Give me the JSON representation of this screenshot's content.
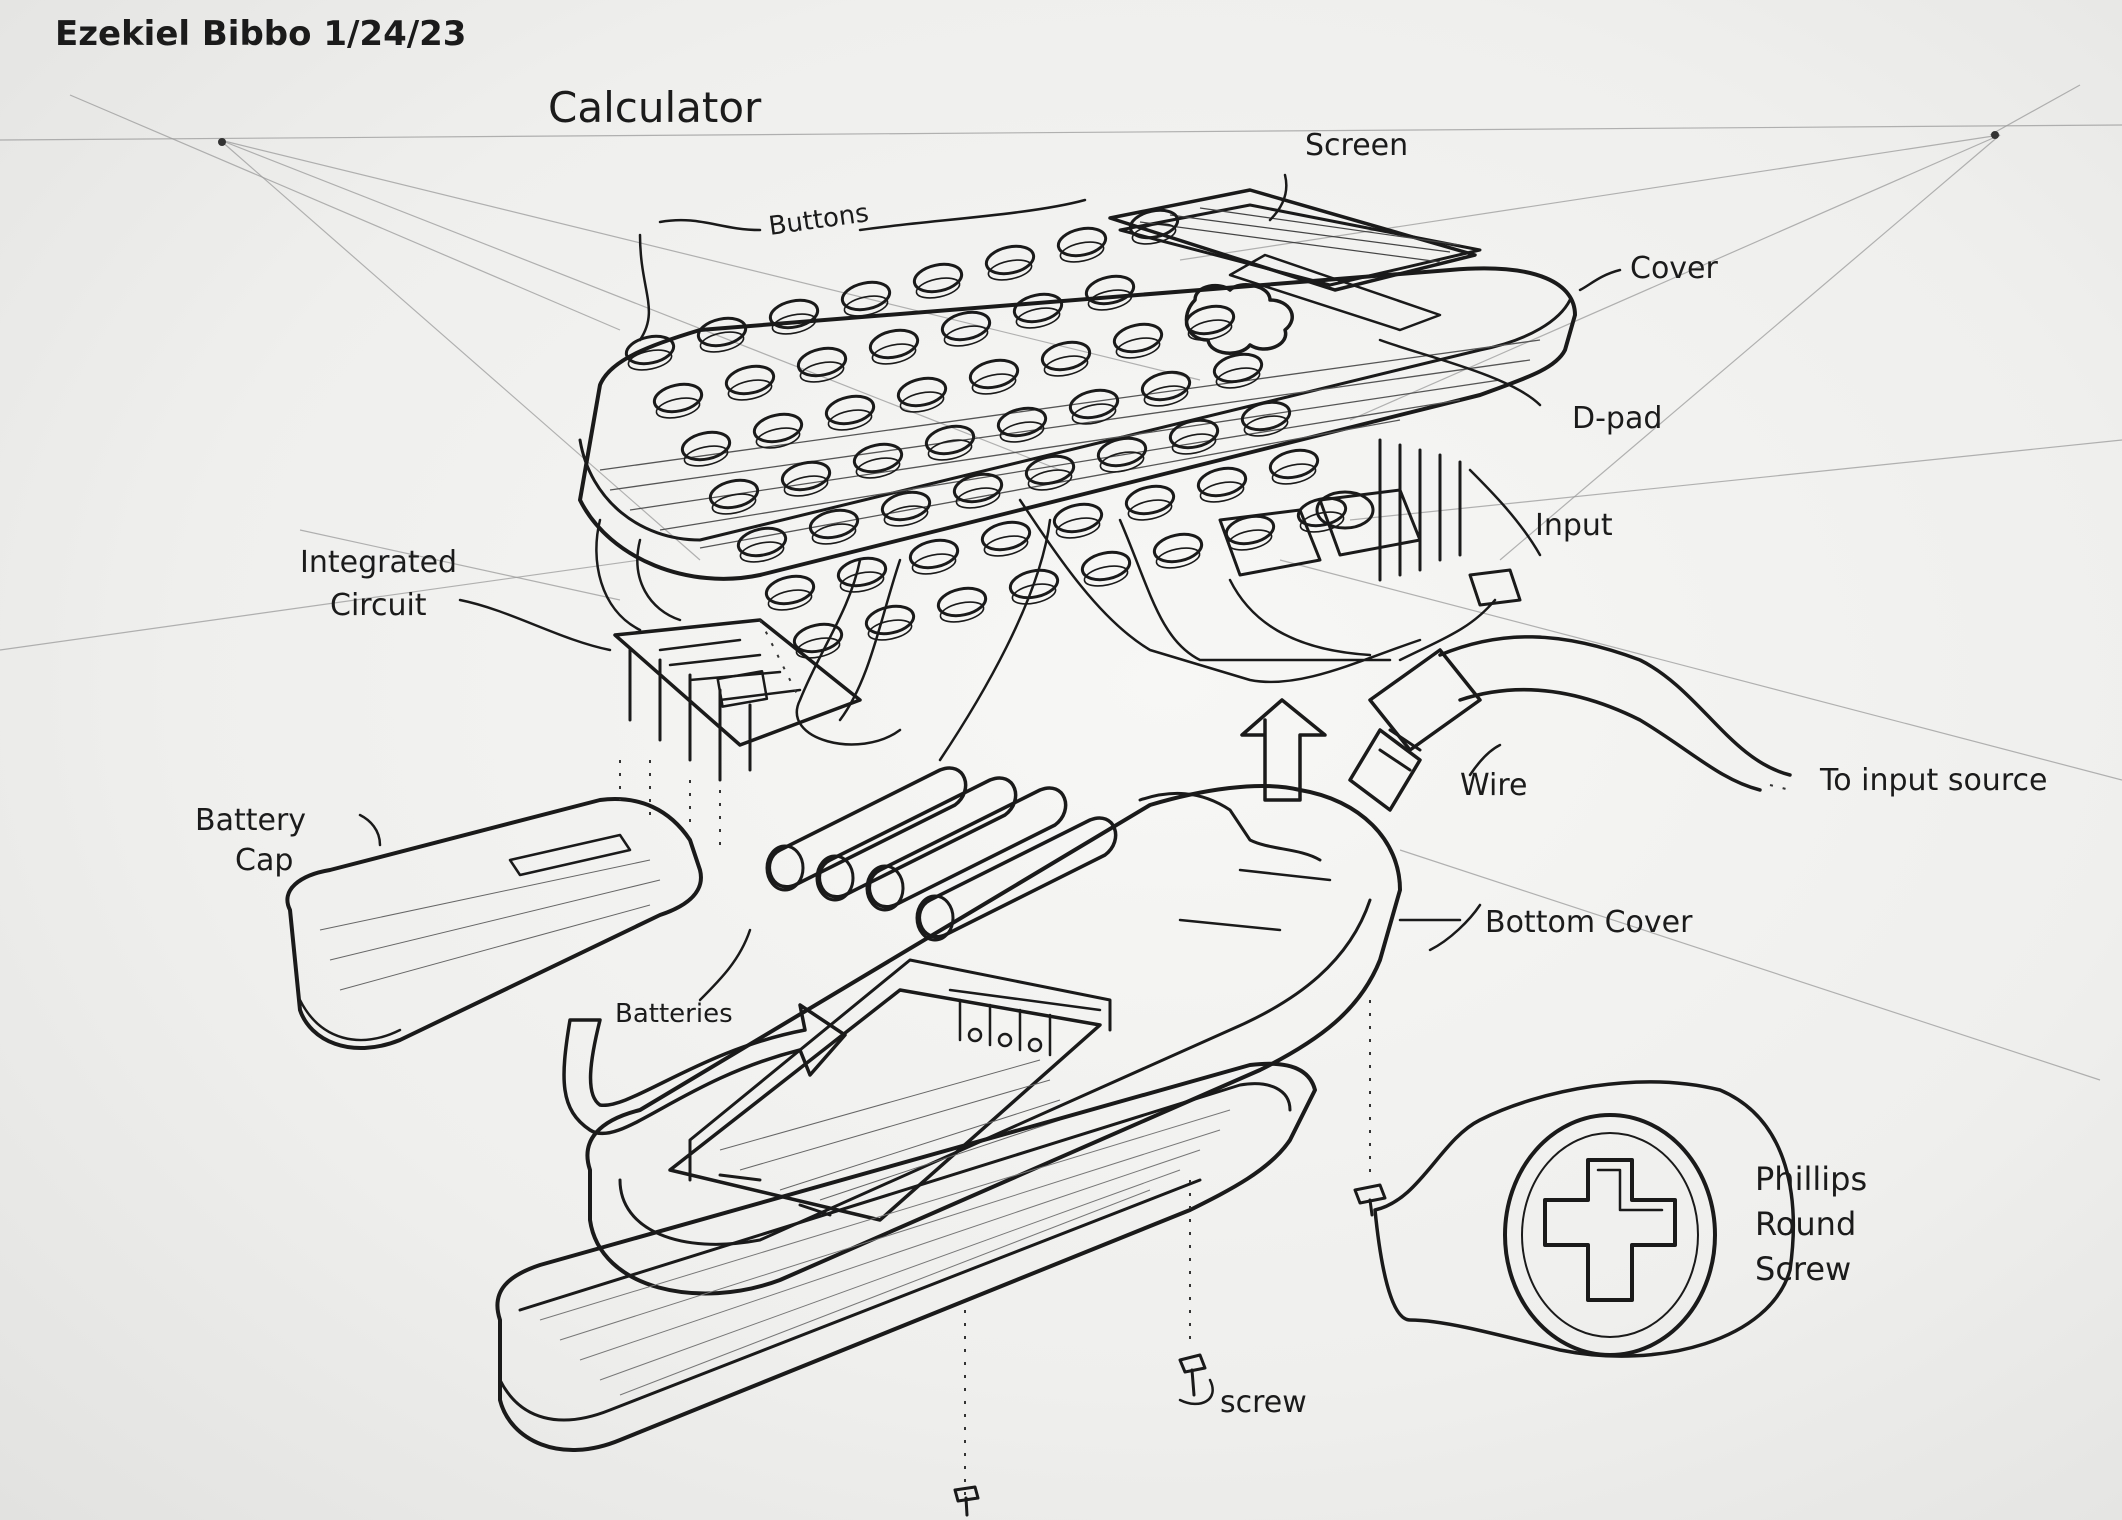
{
  "header": {
    "author_date": "Ezekiel Bibbo 1/24/23",
    "title": "Calculator"
  },
  "labels": {
    "screen": "Screen",
    "buttons": "Buttons",
    "cover": "Cover",
    "dpad": "D-pad",
    "input": "Input",
    "integrated_circuit_1": "Integrated",
    "integrated_circuit_2": "Circuit",
    "battery_cap_1": "Battery",
    "battery_cap_2": "Cap",
    "batteries": "Batteries",
    "wire": "Wire",
    "to_input_source": "To input source",
    "bottom_cover": "Bottom Cover",
    "phillips_1": "Phillips",
    "phillips_2": "Round",
    "phillips_3": "Screw",
    "screw": "screw"
  },
  "style": {
    "ink": "#1a1a1a",
    "paper": "#f2f2f0",
    "guide": "#9a9a9a"
  }
}
